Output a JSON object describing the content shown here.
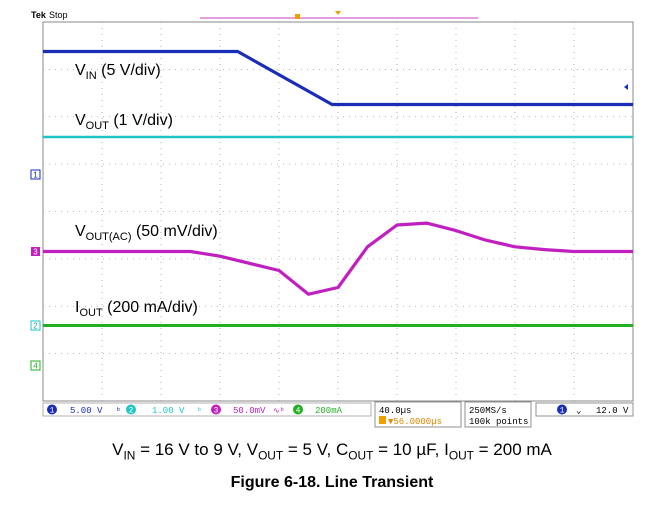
{
  "header": {
    "brand": "Tek",
    "run_state": "Stop"
  },
  "chart_data": {
    "type": "line",
    "title": "",
    "xlabel": "",
    "ylabel": "",
    "x_unit": "µs",
    "xlim": [
      -200,
      200
    ],
    "grid": true,
    "horizontal_divisions": 10,
    "vertical_divisions": 8,
    "trigger_time_us": 56,
    "series": [
      {
        "channel": "1",
        "name_main": "V",
        "name_sub": "IN",
        "name_rest": " (5 V/div)",
        "color": "#1a2db8",
        "x": [
          -200,
          -68,
          -4,
          200
        ],
        "y": [
          16,
          16,
          9,
          9
        ]
      },
      {
        "channel": "2",
        "name_main": "V",
        "name_sub": "OUT",
        "name_rest": " (1 V/div)",
        "color": "#20c4c4",
        "x": [
          -200,
          200
        ],
        "y": [
          5,
          5
        ]
      },
      {
        "channel": "3",
        "name_main": "V",
        "name_sub": "OUT(AC)",
        "name_rest": " (50 mV/div)",
        "color": "#c020c0",
        "x": [
          -200,
          -100,
          -80,
          -40,
          -20,
          0,
          20,
          40,
          60,
          80,
          100,
          120,
          140,
          160,
          180,
          200
        ],
        "y": [
          0,
          0,
          -5,
          -20,
          -45,
          -38,
          5,
          28,
          30,
          22,
          12,
          5,
          2,
          0,
          0,
          0
        ]
      },
      {
        "channel": "4",
        "name_main": "I",
        "name_sub": "OUT",
        "name_rest": " (200 mA/div)",
        "color": "#22b022",
        "x": [
          -200,
          200
        ],
        "y": [
          200,
          200
        ]
      }
    ]
  },
  "status_bar": {
    "ch1_scale": "5.00 V",
    "ch2_scale": "1.00 V",
    "ch3_scale": "50.0mV",
    "ch4_scale": "200mA",
    "timebase": "40.0µs",
    "trigger_position": "▼56.0000µs",
    "sample_rate": "250MS/s",
    "record_length": "100k points",
    "trigger_level": "12.0 V"
  },
  "caption": {
    "conditions": [
      {
        "main": "V",
        "sub": "IN",
        "rest": " = 16 V to 9 V, "
      },
      {
        "main": "V",
        "sub": "OUT",
        "rest": " = 5 V, "
      },
      {
        "main": "C",
        "sub": "OUT",
        "rest": " = 10 µF, "
      },
      {
        "main": "I",
        "sub": "OUT",
        "rest": " = 200 mA"
      }
    ],
    "figure_title": "Figure 6-18. Line Transient"
  }
}
